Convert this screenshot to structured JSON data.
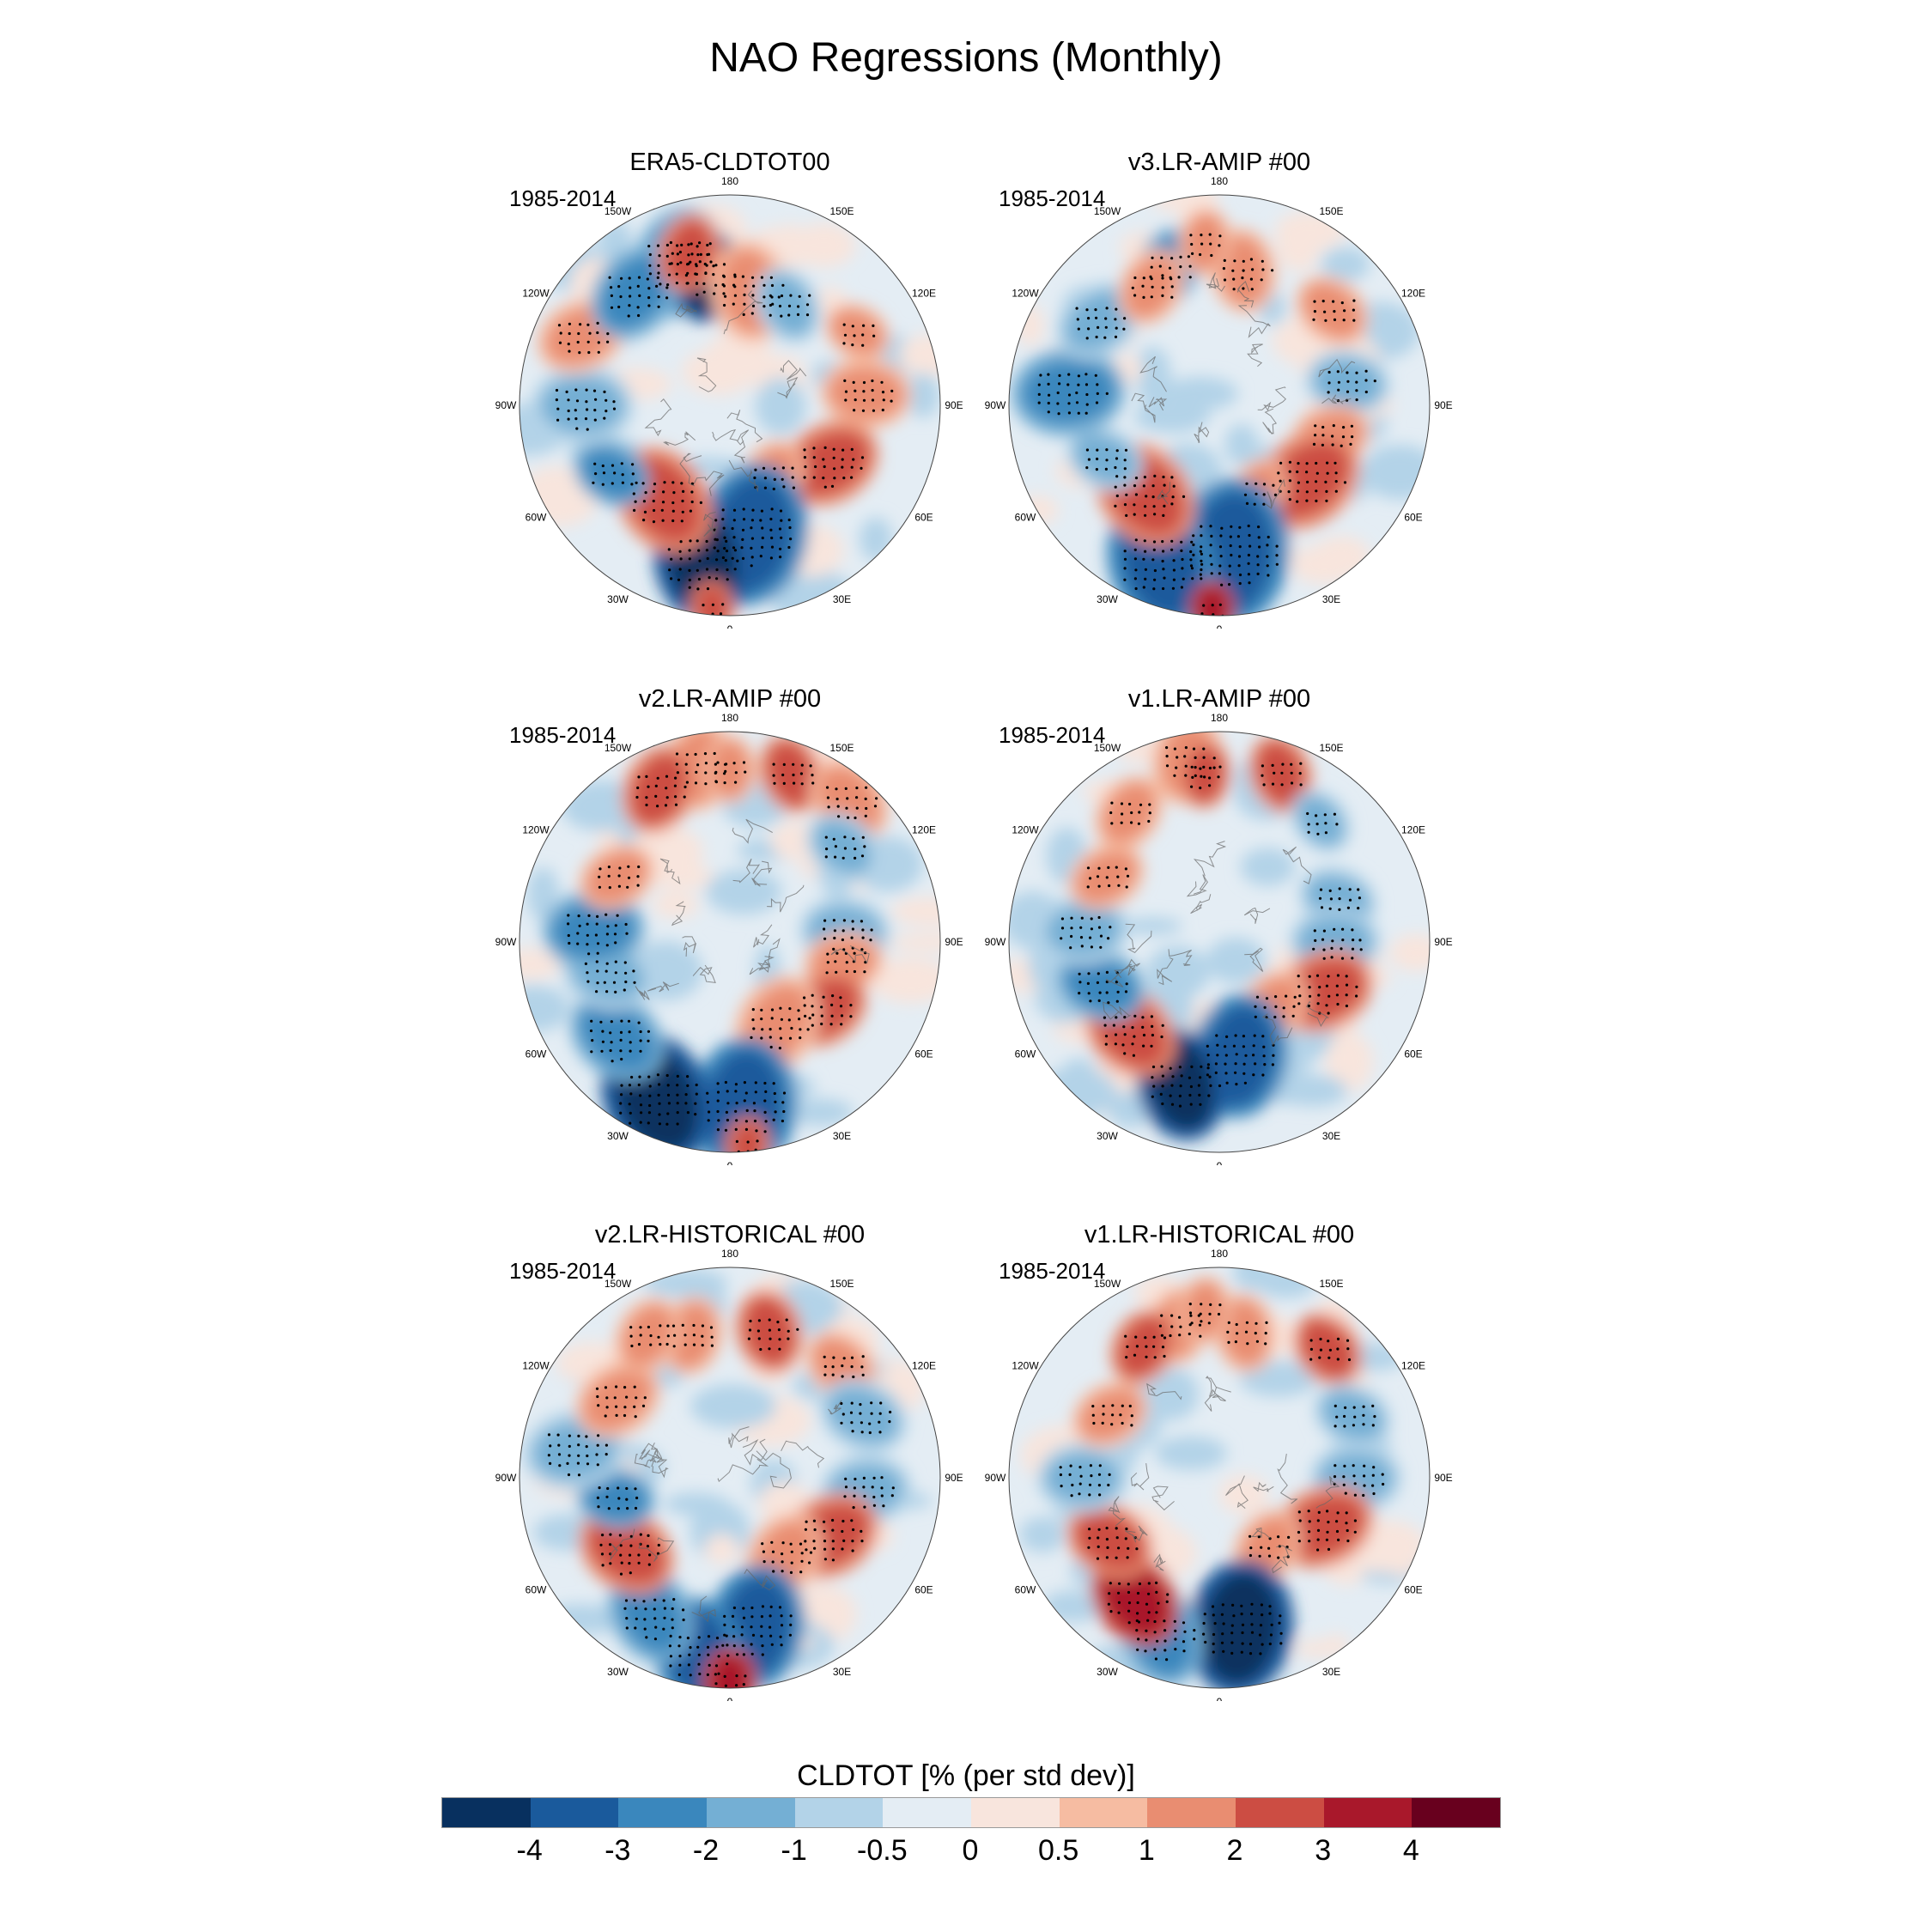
{
  "title": "NAO Regressions (Monthly)",
  "panels": [
    {
      "title": "ERA5-CLDTOT00",
      "period": "1985-2014"
    },
    {
      "title": "v3.LR-AMIP  #00",
      "period": "1985-2014"
    },
    {
      "title": "v2.LR-AMIP  #00",
      "period": "1985-2014"
    },
    {
      "title": "v1.LR-AMIP  #00",
      "period": "1985-2014"
    },
    {
      "title": "v2.LR-HISTORICAL  #00",
      "period": "1985-2014"
    },
    {
      "title": "v1.LR-HISTORICAL  #00",
      "period": "1985-2014"
    }
  ],
  "lon_labels": [
    "180",
    "150E",
    "120E",
    "90E",
    "60E",
    "30E",
    "0",
    "30W",
    "60W",
    "90W",
    "120W",
    "150W"
  ],
  "colorbar": {
    "title": "CLDTOT [% (per std dev)]",
    "tick_labels": [
      "-4",
      "-3",
      "-2",
      "-1",
      "-0.5",
      "0",
      "0.5",
      "1",
      "2",
      "3",
      "4"
    ],
    "colors": [
      "#08305f",
      "#1a5a9c",
      "#3a87bd",
      "#74afd4",
      "#b3d3e8",
      "#e4edf4",
      "#f8e5dd",
      "#f6bca2",
      "#e98d71",
      "#cc4d43",
      "#a9182b",
      "#68001e"
    ]
  }
}
